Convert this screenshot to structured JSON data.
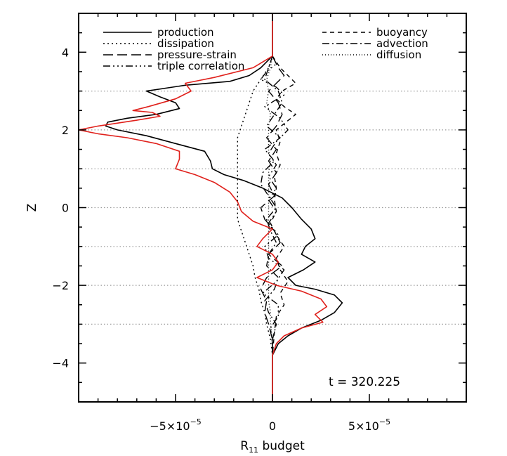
{
  "chart_data": {
    "type": "line",
    "xlabel_main": "R",
    "xlabel_sub": "11",
    "xlabel_rest": " budget",
    "ylabel": "Z",
    "xlim": [
      -0.0001,
      0.0001
    ],
    "ylim": [
      -5,
      5
    ],
    "x_ticks": [
      {
        "value": -5e-05,
        "mantissa": "−5×10",
        "exp": "−5"
      },
      {
        "value": 0,
        "mantissa": "0",
        "exp": ""
      },
      {
        "value": 5e-05,
        "mantissa": "5×10",
        "exp": "−5"
      }
    ],
    "y_ticks": [
      {
        "value": -4,
        "label": "−4"
      },
      {
        "value": -2,
        "label": "−2"
      },
      {
        "value": 0,
        "label": "0"
      },
      {
        "value": 2,
        "label": "2"
      },
      {
        "value": 4,
        "label": "4"
      }
    ],
    "gridlines_y": [
      -3,
      -2,
      -1,
      0,
      1,
      2,
      3
    ],
    "annotation": "t = 320.225",
    "legend": [
      {
        "name": "production",
        "style": "solid",
        "column": "left"
      },
      {
        "name": "dissipation",
        "style": "dotted",
        "column": "left"
      },
      {
        "name": "pressure-strain",
        "style": "longdash",
        "column": "left"
      },
      {
        "name": "triple correlation",
        "style": "dashdotdotdot",
        "column": "left"
      },
      {
        "name": "buoyancy",
        "style": "dashed",
        "column": "right"
      },
      {
        "name": "advection",
        "style": "dashdot",
        "column": "right"
      },
      {
        "name": "diffusion",
        "style": "finedot",
        "column": "right"
      }
    ],
    "series": [
      {
        "name": "production",
        "color": "#000000",
        "style": "solid",
        "points": [
          [
            0,
            5
          ],
          [
            0,
            3.9
          ],
          [
            -6e-06,
            3.6
          ],
          [
            -1.2e-05,
            3.4
          ],
          [
            -2.2e-05,
            3.25
          ],
          [
            -4.5e-05,
            3.15
          ],
          [
            -6.5e-05,
            3.0
          ],
          [
            -5.8e-05,
            2.85
          ],
          [
            -5e-05,
            2.7
          ],
          [
            -4.8e-05,
            2.55
          ],
          [
            -6e-05,
            2.4
          ],
          [
            -7.5e-05,
            2.3
          ],
          [
            -8.5e-05,
            2.2
          ],
          [
            -8.6e-05,
            2.1
          ],
          [
            -8e-05,
            2.0
          ],
          [
            -6.5e-05,
            1.85
          ],
          [
            -5e-05,
            1.65
          ],
          [
            -3.5e-05,
            1.45
          ],
          [
            -3.2e-05,
            1.2
          ],
          [
            -3.1e-05,
            1.0
          ],
          [
            -2.5e-05,
            0.85
          ],
          [
            -1.5e-05,
            0.7
          ],
          [
            -5e-06,
            0.5
          ],
          [
            5e-06,
            0.25
          ],
          [
            1e-05,
            0.0
          ],
          [
            1.5e-05,
            -0.3
          ],
          [
            2e-05,
            -0.55
          ],
          [
            2.2e-05,
            -0.8
          ],
          [
            1.7e-05,
            -1.0
          ],
          [
            1.5e-05,
            -1.2
          ],
          [
            2.2e-05,
            -1.4
          ],
          [
            1.6e-05,
            -1.6
          ],
          [
            8e-06,
            -1.8
          ],
          [
            1.2e-05,
            -2.0
          ],
          [
            2.2e-05,
            -2.1
          ],
          [
            3.2e-05,
            -2.25
          ],
          [
            3.6e-05,
            -2.45
          ],
          [
            3.2e-05,
            -2.7
          ],
          [
            2.5e-05,
            -2.9
          ],
          [
            1.5e-05,
            -3.1
          ],
          [
            8e-06,
            -3.3
          ],
          [
            3e-06,
            -3.5
          ],
          [
            0,
            -3.8
          ],
          [
            0,
            -5
          ]
        ]
      },
      {
        "name": "production (red)",
        "color": "#e0211c",
        "style": "solid",
        "points": [
          [
            0,
            5
          ],
          [
            0,
            3.9
          ],
          [
            -1e-05,
            3.6
          ],
          [
            -3e-05,
            3.35
          ],
          [
            -4.5e-05,
            3.2
          ],
          [
            -4.2e-05,
            3.0
          ],
          [
            -5e-05,
            2.8
          ],
          [
            -6.4e-05,
            2.6
          ],
          [
            -7.2e-05,
            2.5
          ],
          [
            -6.2e-05,
            2.45
          ],
          [
            -5.8e-05,
            2.35
          ],
          [
            -7e-05,
            2.25
          ],
          [
            -9e-05,
            2.1
          ],
          [
            -0.0001,
            2.0
          ],
          [
            -9e-05,
            1.9
          ],
          [
            -7.5e-05,
            1.8
          ],
          [
            -6e-05,
            1.65
          ],
          [
            -4.8e-05,
            1.45
          ],
          [
            -4.8e-05,
            1.25
          ],
          [
            -5e-05,
            1.0
          ],
          [
            -4e-05,
            0.85
          ],
          [
            -3e-05,
            0.65
          ],
          [
            -2.2e-05,
            0.4
          ],
          [
            -1.8e-05,
            0.15
          ],
          [
            -1.6e-05,
            -0.1
          ],
          [
            -1e-05,
            -0.35
          ],
          [
            0,
            -0.55
          ],
          [
            -5e-06,
            -0.8
          ],
          [
            -8e-06,
            -1.0
          ],
          [
            0,
            -1.2
          ],
          [
            3e-06,
            -1.4
          ],
          [
            0,
            -1.6
          ],
          [
            -8e-06,
            -1.8
          ],
          [
            2e-06,
            -2.0
          ],
          [
            1.5e-05,
            -2.15
          ],
          [
            2.5e-05,
            -2.35
          ],
          [
            2.8e-05,
            -2.55
          ],
          [
            2.2e-05,
            -2.75
          ],
          [
            2.6e-05,
            -2.95
          ],
          [
            1.5e-05,
            -3.1
          ],
          [
            6e-06,
            -3.3
          ],
          [
            2e-06,
            -3.5
          ],
          [
            0,
            -3.8
          ],
          [
            0,
            -5
          ]
        ]
      },
      {
        "name": "dissipation",
        "color": "#000000",
        "style": "dotted",
        "points": [
          [
            0,
            3.9
          ],
          [
            -2e-06,
            3.6
          ],
          [
            -6e-06,
            3.3
          ],
          [
            -1e-05,
            3.0
          ],
          [
            -1.2e-05,
            2.7
          ],
          [
            -1.4e-05,
            2.4
          ],
          [
            -1.6e-05,
            2.1
          ],
          [
            -1.8e-05,
            1.8
          ],
          [
            -1.8e-05,
            1.5
          ],
          [
            -1.8e-05,
            1.2
          ],
          [
            -1.8e-05,
            0.9
          ],
          [
            -1.8e-05,
            0.6
          ],
          [
            -1.8e-05,
            0.3
          ],
          [
            -1.8e-05,
            0.0
          ],
          [
            -1.8e-05,
            -0.3
          ],
          [
            -1.6e-05,
            -0.6
          ],
          [
            -1.4e-05,
            -0.9
          ],
          [
            -1.2e-05,
            -1.2
          ],
          [
            -1e-05,
            -1.5
          ],
          [
            -9e-06,
            -1.8
          ],
          [
            -7e-06,
            -2.1
          ],
          [
            -6e-06,
            -2.4
          ],
          [
            -4e-06,
            -2.7
          ],
          [
            -3e-06,
            -3.0
          ],
          [
            -1e-06,
            -3.4
          ],
          [
            0,
            -3.8
          ]
        ]
      },
      {
        "name": "pressure-strain",
        "color": "#000000",
        "style": "longdash",
        "points": [
          [
            0,
            3.9
          ],
          [
            3e-06,
            3.6
          ],
          [
            6e-06,
            3.4
          ],
          [
            2e-06,
            3.2
          ],
          [
            -2e-06,
            3.0
          ],
          [
            3e-06,
            2.7
          ],
          [
            5e-06,
            2.4
          ],
          [
            2e-06,
            2.1
          ],
          [
            -3e-06,
            1.8
          ],
          [
            2e-06,
            1.5
          ],
          [
            -2e-06,
            1.2
          ],
          [
            2e-06,
            0.9
          ],
          [
            -2e-06,
            0.6
          ],
          [
            1e-06,
            0.3
          ],
          [
            -6e-06,
            0.0
          ],
          [
            -4e-06,
            -0.3
          ],
          [
            1e-06,
            -0.6
          ],
          [
            4e-06,
            -0.9
          ],
          [
            -2e-06,
            -1.2
          ],
          [
            5e-06,
            -1.5
          ],
          [
            -3e-06,
            -1.8
          ],
          [
            -6e-06,
            -2.1
          ],
          [
            -3e-06,
            -2.4
          ],
          [
            -4e-06,
            -2.7
          ],
          [
            -2e-06,
            -3.0
          ],
          [
            0,
            -3.4
          ],
          [
            0,
            -3.8
          ]
        ]
      },
      {
        "name": "triple correlation",
        "color": "#000000",
        "style": "dashdotdotdot",
        "points": [
          [
            0,
            3.9
          ],
          [
            2e-06,
            3.7
          ],
          [
            -3e-06,
            3.5
          ],
          [
            -6e-06,
            3.3
          ],
          [
            2e-06,
            3.1
          ],
          [
            6e-06,
            2.9
          ],
          [
            -4e-06,
            2.6
          ],
          [
            4e-06,
            2.3
          ],
          [
            8e-06,
            2.0
          ],
          [
            2e-06,
            1.7
          ],
          [
            -2e-06,
            1.4
          ],
          [
            2e-06,
            1.1
          ],
          [
            -2e-06,
            0.8
          ],
          [
            2e-06,
            0.5
          ],
          [
            -2e-06,
            0.2
          ],
          [
            2e-06,
            -0.1
          ],
          [
            -2e-06,
            -0.4
          ],
          [
            3e-06,
            -0.7
          ],
          [
            -4e-06,
            -1.0
          ],
          [
            -2e-06,
            -1.3
          ],
          [
            6e-06,
            -1.6
          ],
          [
            2e-06,
            -1.9
          ],
          [
            -5e-06,
            -2.2
          ],
          [
            3e-06,
            -2.5
          ],
          [
            3e-06,
            -2.8
          ],
          [
            -1e-06,
            -3.1
          ],
          [
            0,
            -3.5
          ],
          [
            0,
            -3.8
          ]
        ]
      },
      {
        "name": "buoyancy",
        "color": "#000000",
        "style": "dashed",
        "points": [
          [
            0,
            3.9
          ],
          [
            4e-06,
            3.6
          ],
          [
            8e-06,
            3.4
          ],
          [
            1.2e-05,
            3.2
          ],
          [
            5e-06,
            3.0
          ],
          [
            2e-06,
            2.8
          ],
          [
            6e-06,
            2.6
          ],
          [
            1.2e-05,
            2.4
          ],
          [
            7e-06,
            2.2
          ],
          [
            2e-06,
            2.0
          ],
          [
            4e-06,
            1.7
          ],
          [
            2e-06,
            1.4
          ],
          [
            4e-06,
            1.1
          ],
          [
            1e-06,
            0.8
          ],
          [
            2e-06,
            0.5
          ],
          [
            1e-06,
            0.2
          ],
          [
            2e-06,
            -0.1
          ],
          [
            -1e-06,
            -0.4
          ],
          [
            2e-06,
            -0.7
          ],
          [
            6e-06,
            -1.0
          ],
          [
            2e-06,
            -1.3
          ],
          [
            4e-06,
            -1.6
          ],
          [
            8e-06,
            -1.9
          ],
          [
            4e-06,
            -2.2
          ],
          [
            6e-06,
            -2.5
          ],
          [
            2e-06,
            -2.8
          ],
          [
            1e-06,
            -3.2
          ],
          [
            0,
            -3.8
          ]
        ]
      },
      {
        "name": "advection",
        "color": "#000000",
        "style": "dashdot",
        "points": [
          [
            0,
            3.9
          ],
          [
            -2e-06,
            3.6
          ],
          [
            -4e-06,
            3.3
          ],
          [
            3e-06,
            3.0
          ],
          [
            5e-06,
            2.7
          ],
          [
            1e-06,
            2.4
          ],
          [
            -3e-06,
            2.1
          ],
          [
            4e-06,
            1.8
          ],
          [
            -4e-06,
            1.5
          ],
          [
            1e-06,
            1.2
          ],
          [
            -5e-06,
            0.9
          ],
          [
            -6e-06,
            0.6
          ],
          [
            -2e-06,
            0.3
          ],
          [
            2e-06,
            0.0
          ],
          [
            -3e-06,
            -0.3
          ],
          [
            -1e-06,
            -0.6
          ],
          [
            2e-06,
            -0.9
          ],
          [
            -2e-06,
            -1.2
          ],
          [
            -3e-06,
            -1.5
          ],
          [
            3e-06,
            -1.8
          ],
          [
            1e-06,
            -2.1
          ],
          [
            -4e-06,
            -2.4
          ],
          [
            -2e-06,
            -2.7
          ],
          [
            2e-06,
            -3.0
          ],
          [
            0,
            -3.4
          ],
          [
            0,
            -3.8
          ]
        ]
      },
      {
        "name": "diffusion",
        "color": "#000000",
        "style": "finedot",
        "points": [
          [
            0,
            3.9
          ],
          [
            -1e-06,
            3.6
          ],
          [
            -3e-06,
            3.3
          ],
          [
            -2e-06,
            3.0
          ],
          [
            -3e-06,
            2.7
          ],
          [
            -1e-06,
            2.4
          ],
          [
            -2e-06,
            2.1
          ],
          [
            -2e-06,
            1.8
          ],
          [
            -2e-06,
            1.5
          ],
          [
            -1e-06,
            1.2
          ],
          [
            -2e-06,
            0.9
          ],
          [
            -2e-06,
            0.6
          ],
          [
            -2e-06,
            0.3
          ],
          [
            -2e-06,
            0.0
          ],
          [
            -2e-06,
            -0.3
          ],
          [
            -2e-06,
            -0.6
          ],
          [
            -2e-06,
            -0.9
          ],
          [
            -2e-06,
            -1.2
          ],
          [
            -2e-06,
            -1.5
          ],
          [
            -2e-06,
            -1.8
          ],
          [
            -2e-06,
            -2.1
          ],
          [
            -2e-06,
            -2.4
          ],
          [
            -1e-06,
            -2.7
          ],
          [
            -1e-06,
            -3.0
          ],
          [
            0,
            -3.4
          ],
          [
            0,
            -3.8
          ]
        ]
      }
    ]
  }
}
